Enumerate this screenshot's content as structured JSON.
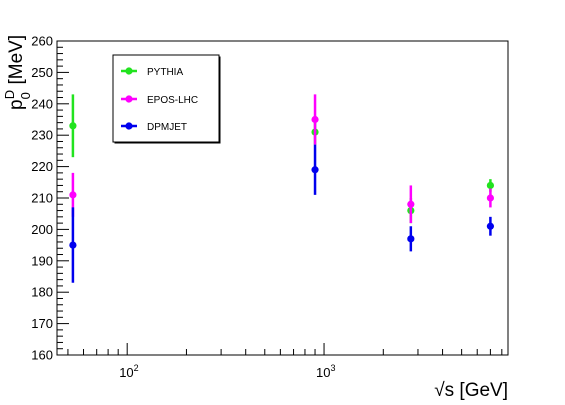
{
  "chart_data": {
    "type": "scatter",
    "xscale": "log",
    "xlim": [
      44,
      8600
    ],
    "ylim": [
      160,
      260
    ],
    "yticks": [
      160,
      170,
      180,
      190,
      200,
      210,
      220,
      230,
      240,
      250,
      260
    ],
    "xticks_major": [
      {
        "value": 100,
        "base": "10",
        "exp": "2"
      },
      {
        "value": 1000,
        "base": "10",
        "exp": "3"
      }
    ],
    "xlabel": "√s [GeV]",
    "ylabel": {
      "main": "p",
      "sup": "D",
      "sub": "0",
      "unit": " [MeV]"
    },
    "legend": {
      "placement": "top-left"
    },
    "grid": false,
    "series": [
      {
        "name": "PYTHIA",
        "color": "#22e31f",
        "points": [
          {
            "x": 53,
            "y": 233,
            "err": 10
          },
          {
            "x": 900,
            "y": 231,
            "err": 4
          },
          {
            "x": 2760,
            "y": 206,
            "err": 4
          },
          {
            "x": 7000,
            "y": 214,
            "err": 2
          }
        ]
      },
      {
        "name": "EPOS-LHC",
        "color": "#ff00ff",
        "points": [
          {
            "x": 53,
            "y": 211,
            "err": 7
          },
          {
            "x": 900,
            "y": 235,
            "err": 8
          },
          {
            "x": 2760,
            "y": 208,
            "err": 6
          },
          {
            "x": 7000,
            "y": 210,
            "err": 3
          }
        ]
      },
      {
        "name": "DPMJET",
        "color": "#0000ee",
        "points": [
          {
            "x": 53,
            "y": 195,
            "err": 12
          },
          {
            "x": 900,
            "y": 219,
            "err": 8
          },
          {
            "x": 2760,
            "y": 197,
            "err": 4
          },
          {
            "x": 7000,
            "y": 201,
            "err": 3
          }
        ]
      }
    ]
  }
}
